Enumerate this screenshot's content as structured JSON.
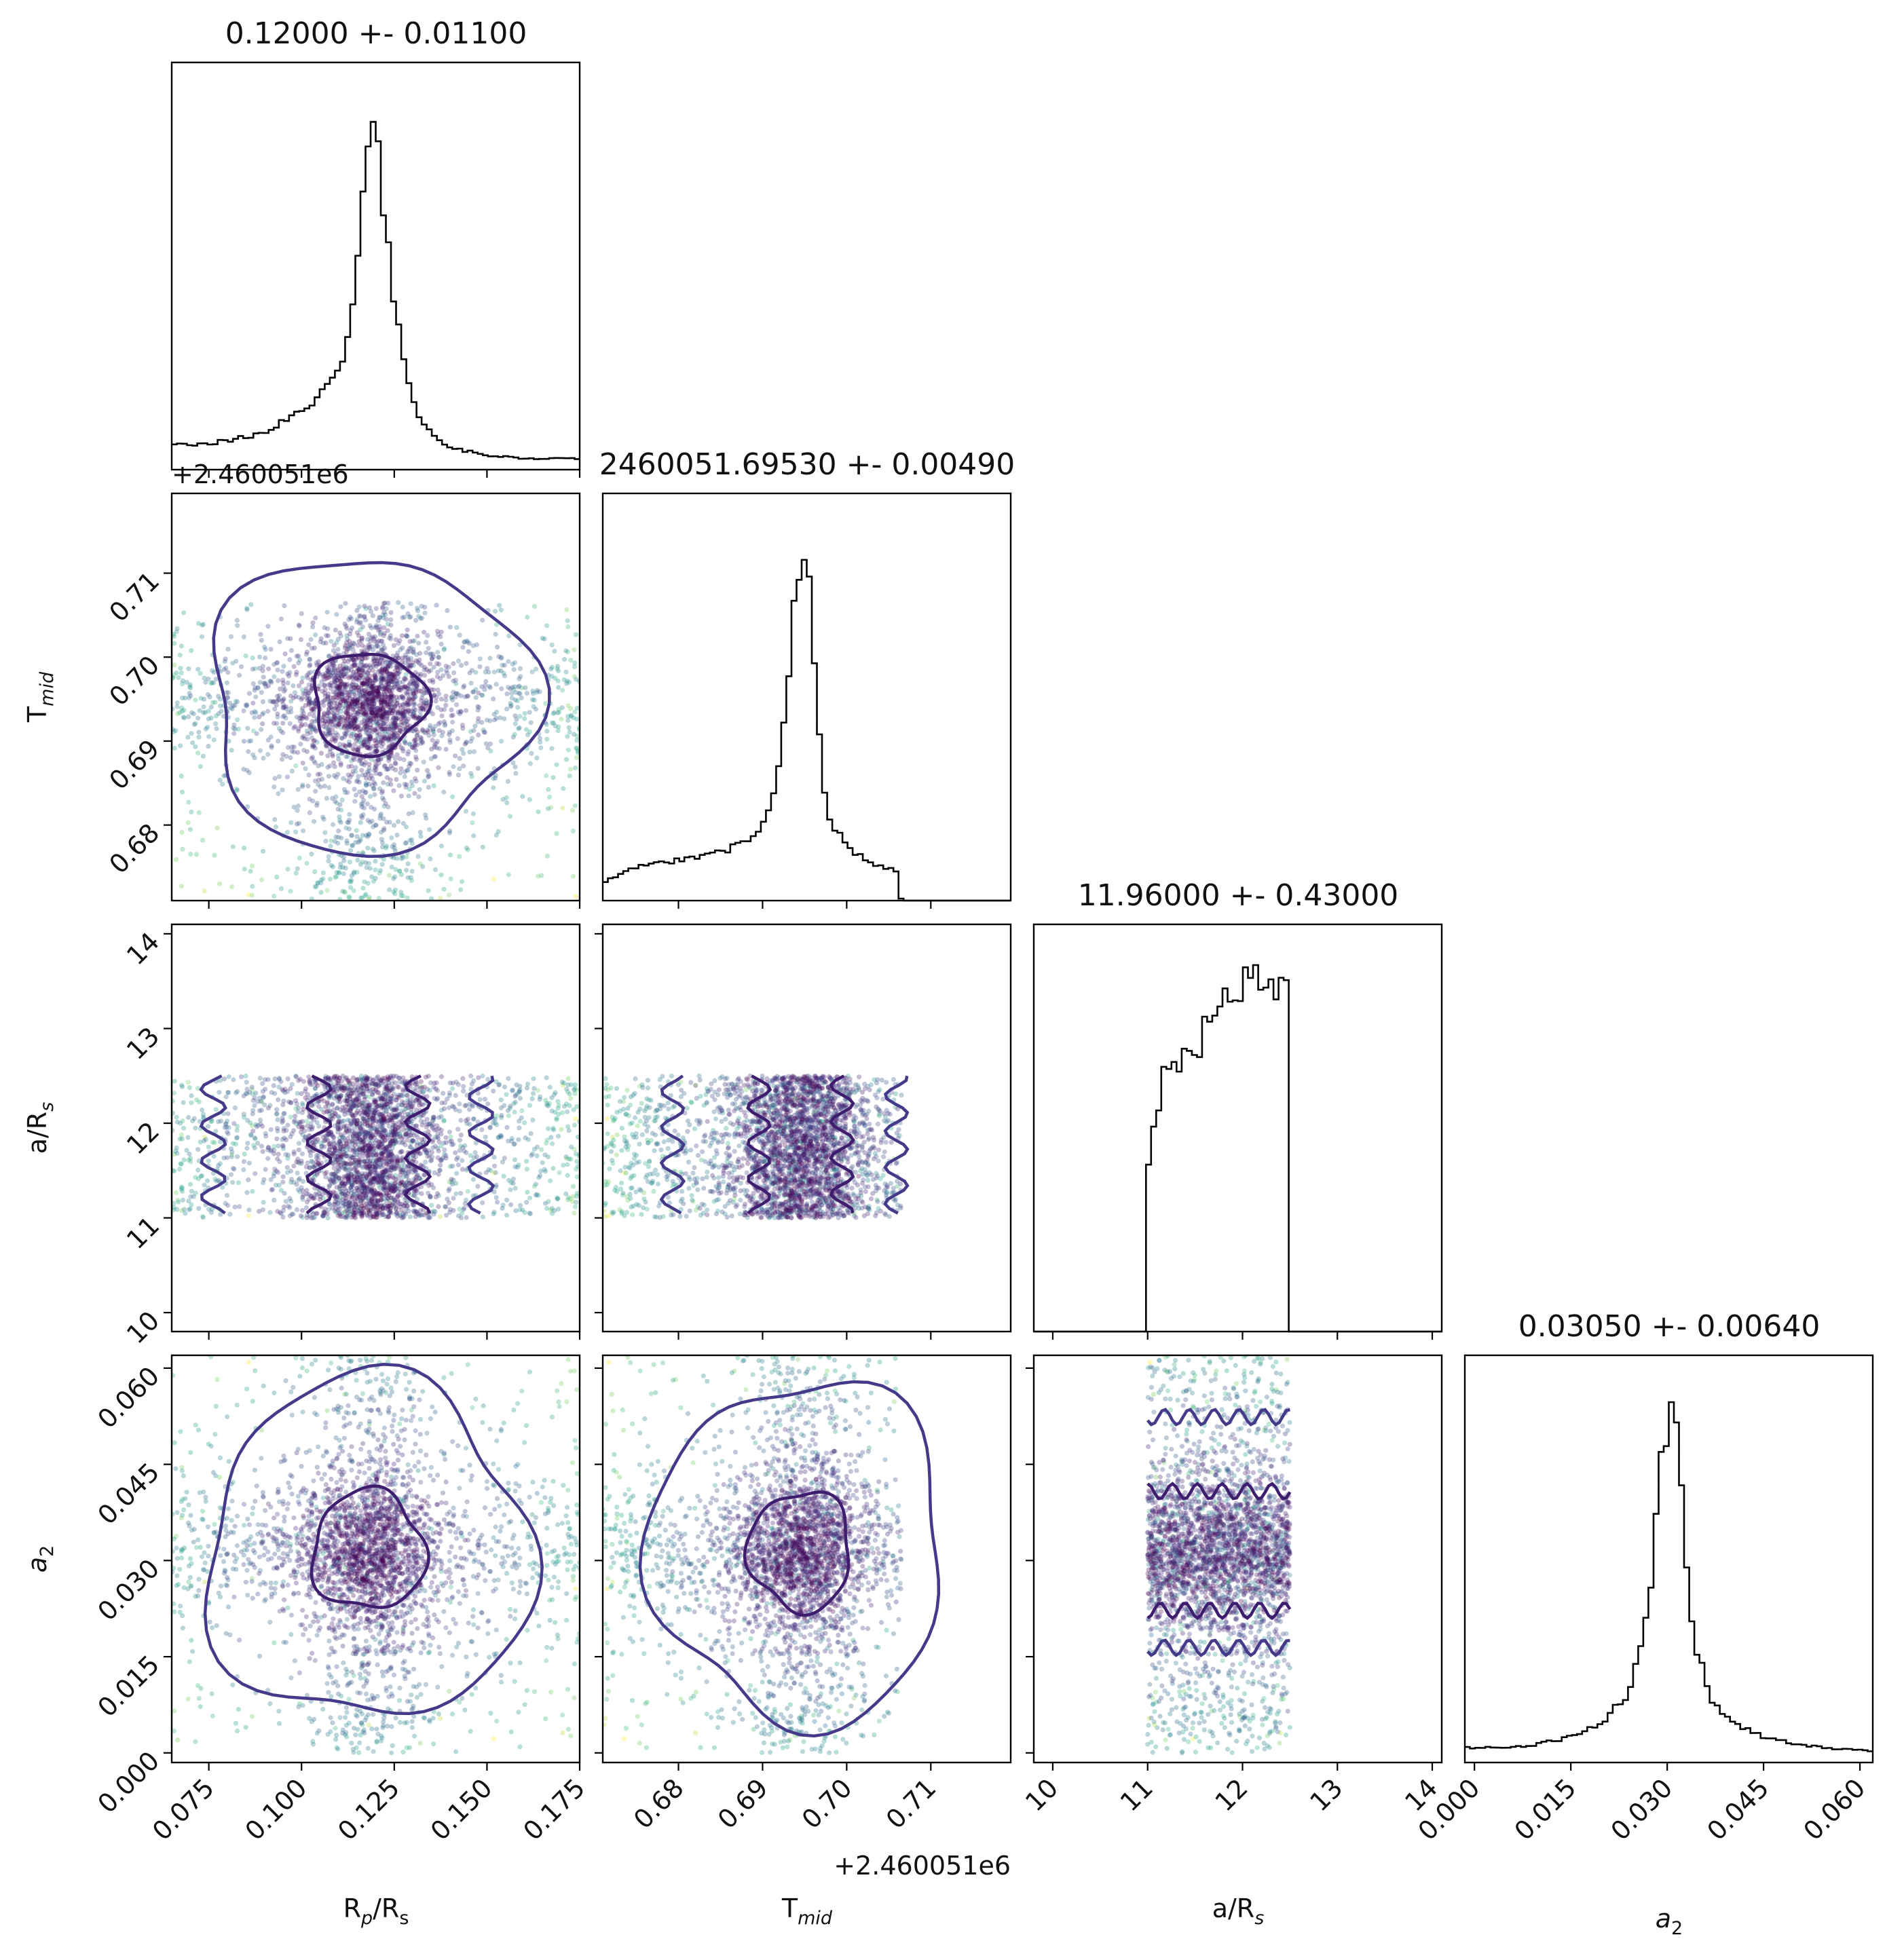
{
  "colors": {
    "scatter_palette": [
      "#440154",
      "#482878",
      "#3e4a89",
      "#31688e",
      "#26828e",
      "#1f9e89",
      "#35b779",
      "#6ece58",
      "#b5de2b",
      "#fde725"
    ],
    "contour_inner": "#3e1d6e",
    "contour_outer": "#453a8a",
    "histogram": "#000000"
  },
  "chart_data": {
    "type": "corner",
    "parameters": [
      "R_p/R_s",
      "T_mid",
      "a/R_s",
      "a_2"
    ],
    "axis_labels": {
      "rp_rs": {
        "base": "R",
        "sub1": "p",
        "mid": "/R",
        "sub2": "s"
      },
      "t_mid": {
        "base": "T",
        "sub": "mid"
      },
      "a_rs": {
        "base": "a/R",
        "sub": "s"
      },
      "a2": {
        "base": "a",
        "sub": "2"
      }
    },
    "titles": [
      "0.12000 +- 0.01100",
      "2460051.69530 +- 0.00490",
      "11.96000 +- 0.43000",
      "0.03050 +- 0.00640"
    ],
    "offset_labels": {
      "rp_rs_panel_top": "+2.460051e6",
      "t_mid_bottom": "+2.460051e6"
    },
    "ranges": {
      "rp_rs": [
        0.065,
        0.175
      ],
      "t_mid_offset": [
        0.671,
        0.7195
      ],
      "a_rs": [
        9.8,
        14.1
      ],
      "a2": [
        -0.0015,
        0.062
      ]
    },
    "ticks": {
      "rp_rs": [
        "0.075",
        "0.100",
        "0.125",
        "0.150",
        "0.175"
      ],
      "t_mid": [
        "0.68",
        "0.69",
        "0.70",
        "0.71"
      ],
      "a_rs": [
        "10",
        "11",
        "12",
        "13",
        "14"
      ],
      "a2": [
        "0.000",
        "0.015",
        "0.030",
        "0.045",
        "0.060"
      ]
    },
    "tick_values": {
      "rp_rs": [
        0.075,
        0.1,
        0.125,
        0.15,
        0.175
      ],
      "t_mid": [
        0.68,
        0.69,
        0.7,
        0.71
      ],
      "a_rs": [
        10,
        11,
        12,
        13,
        14
      ],
      "a2": [
        0.0,
        0.015,
        0.03,
        0.045,
        0.06
      ]
    },
    "marginals": [
      {
        "parameter": "R_p/R_s",
        "median": 0.12,
        "sigma": 0.011,
        "x": [
          0.065,
          0.07,
          0.075,
          0.08,
          0.085,
          0.09,
          0.095,
          0.1,
          0.105,
          0.11,
          0.113,
          0.116,
          0.118,
          0.12,
          0.122,
          0.125,
          0.13,
          0.135,
          0.14,
          0.145,
          0.15,
          0.16,
          0.175
        ],
        "density": [
          0.07,
          0.07,
          0.07,
          0.08,
          0.09,
          0.1,
          0.13,
          0.16,
          0.2,
          0.27,
          0.4,
          0.62,
          0.95,
          1.0,
          0.75,
          0.45,
          0.18,
          0.1,
          0.06,
          0.05,
          0.04,
          0.03,
          0.03
        ]
      },
      {
        "parameter": "T_mid",
        "median": 2460051.6953,
        "sigma": 0.0049,
        "x": [
          0.671,
          0.675,
          0.68,
          0.685,
          0.688,
          0.69,
          0.692,
          0.693,
          0.694,
          0.695,
          0.696,
          0.697,
          0.698,
          0.7,
          0.703,
          0.706,
          0.7065,
          0.71,
          0.7195
        ],
        "density": [
          0.05,
          0.09,
          0.11,
          0.13,
          0.16,
          0.2,
          0.35,
          0.6,
          0.85,
          1.0,
          0.72,
          0.35,
          0.22,
          0.15,
          0.1,
          0.08,
          0.0,
          0.0,
          0.0
        ]
      },
      {
        "parameter": "a/R_s",
        "median": 11.96,
        "sigma": 0.43,
        "x": [
          9.8,
          11.0,
          11.01,
          11.2,
          11.4,
          11.6,
          11.8,
          12.0,
          12.2,
          12.4,
          12.49,
          12.5,
          14.1
        ],
        "density": [
          0.0,
          0.0,
          0.48,
          0.72,
          0.76,
          0.82,
          0.92,
          0.97,
          1.0,
          0.96,
          0.9,
          0.0,
          0.0
        ]
      },
      {
        "parameter": "a_2",
        "median": 0.0305,
        "sigma": 0.0064,
        "x": [
          -0.0015,
          0.005,
          0.01,
          0.015,
          0.02,
          0.024,
          0.027,
          0.029,
          0.03,
          0.031,
          0.032,
          0.034,
          0.037,
          0.04,
          0.045,
          0.05,
          0.055,
          0.062
        ],
        "density": [
          0.04,
          0.04,
          0.05,
          0.07,
          0.11,
          0.19,
          0.42,
          0.8,
          0.92,
          1.0,
          0.8,
          0.35,
          0.16,
          0.11,
          0.07,
          0.05,
          0.04,
          0.03
        ]
      }
    ],
    "scatter_extent": {
      "t_mid_offset": [
        0.671,
        0.7065
      ],
      "a_rs": [
        11.0,
        12.5
      ],
      "rp_rs": [
        0.065,
        0.175
      ],
      "a2": [
        0.0,
        0.062
      ]
    },
    "contours_note": "two contour levels per 2D panel (inner dark, outer lighter)"
  }
}
